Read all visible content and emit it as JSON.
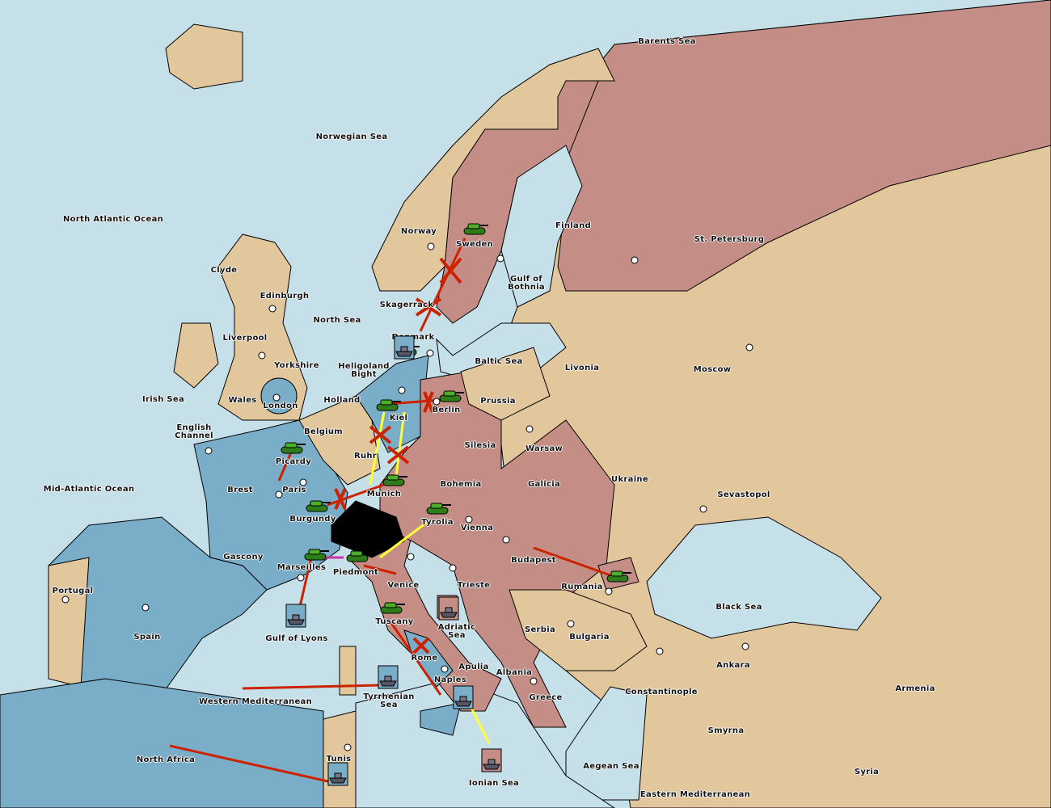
{
  "colors": {
    "sea": "#c6e0ea",
    "neutral_land": "#e2c69c",
    "russia_power": "#c48e86",
    "france_power": "#7aaec8",
    "switzerland": "#000000",
    "order_move": "#cc2200",
    "order_support": "#ffff33",
    "order_convoy": "#cc33aa"
  },
  "regions": [
    {
      "name": "Barents Sea"
    },
    {
      "name": "Norwegian Sea"
    },
    {
      "name": "North Atlantic Ocean"
    },
    {
      "name": "Clyde"
    },
    {
      "name": "Edinburgh"
    },
    {
      "name": "Liverpool"
    },
    {
      "name": "Yorkshire"
    },
    {
      "name": "North Sea"
    },
    {
      "name": "Irish Sea"
    },
    {
      "name": "Wales"
    },
    {
      "name": "London"
    },
    {
      "name": "English Channel"
    },
    {
      "name": "Mid-Atlantic Ocean"
    },
    {
      "name": "Brest"
    },
    {
      "name": "Picardy"
    },
    {
      "name": "Paris"
    },
    {
      "name": "Belgium"
    },
    {
      "name": "Holland"
    },
    {
      "name": "Heligoland Bight"
    },
    {
      "name": "Kiel"
    },
    {
      "name": "Ruhr"
    },
    {
      "name": "Munich"
    },
    {
      "name": "Burgundy"
    },
    {
      "name": "Gascony"
    },
    {
      "name": "Marseilles"
    },
    {
      "name": "Piedmont"
    },
    {
      "name": "Spain"
    },
    {
      "name": "Portugal"
    },
    {
      "name": "Gulf of Lyons"
    },
    {
      "name": "Western Mediterranean"
    },
    {
      "name": "North Africa"
    },
    {
      "name": "Tunis"
    },
    {
      "name": "Tyrrhenian Sea"
    },
    {
      "name": "Tuscany"
    },
    {
      "name": "Rome"
    },
    {
      "name": "Naples"
    },
    {
      "name": "Apulia"
    },
    {
      "name": "Venice"
    },
    {
      "name": "Tyrolia"
    },
    {
      "name": "Vienna"
    },
    {
      "name": "Trieste"
    },
    {
      "name": "Adriatic Sea"
    },
    {
      "name": "Ionian Sea"
    },
    {
      "name": "Albania"
    },
    {
      "name": "Greece"
    },
    {
      "name": "Serbia"
    },
    {
      "name": "Bulgaria"
    },
    {
      "name": "Rumania"
    },
    {
      "name": "Budapest"
    },
    {
      "name": "Bohemia"
    },
    {
      "name": "Galicia"
    },
    {
      "name": "Silesia"
    },
    {
      "name": "Warsaw"
    },
    {
      "name": "Berlin"
    },
    {
      "name": "Prussia"
    },
    {
      "name": "Baltic Sea"
    },
    {
      "name": "Denmark"
    },
    {
      "name": "Skagerrack"
    },
    {
      "name": "Norway"
    },
    {
      "name": "Sweden"
    },
    {
      "name": "Gulf of Bothnia"
    },
    {
      "name": "Finland"
    },
    {
      "name": "St. Petersburg"
    },
    {
      "name": "Livonia"
    },
    {
      "name": "Moscow"
    },
    {
      "name": "Ukraine"
    },
    {
      "name": "Sevastopol"
    },
    {
      "name": "Black Sea"
    },
    {
      "name": "Ankara"
    },
    {
      "name": "Armenia"
    },
    {
      "name": "Constantinople"
    },
    {
      "name": "Smyrna"
    },
    {
      "name": "Syria"
    },
    {
      "name": "Aegean Sea"
    },
    {
      "name": "Eastern Mediterranean"
    }
  ],
  "units": [
    {
      "type": "army",
      "owner_color": "#7aaec8"
    },
    {
      "type": "army",
      "owner_color": "#c48e86"
    },
    {
      "type": "army",
      "owner_color": "#7aaec8"
    },
    {
      "type": "army",
      "owner_color": "#c48e86"
    },
    {
      "type": "army",
      "owner_color": "#7aaec8"
    },
    {
      "type": "army",
      "owner_color": "#c48e86"
    },
    {
      "type": "army",
      "owner_color": "#7aaec8"
    },
    {
      "type": "army",
      "owner_color": "#c48e86"
    },
    {
      "type": "army",
      "owner_color": "#7aaec8"
    },
    {
      "type": "army",
      "owner_color": "#7aaec8"
    },
    {
      "type": "army",
      "owner_color": "#c48e86"
    },
    {
      "type": "army",
      "owner_color": "#c48e86"
    },
    {
      "type": "fleet",
      "owner_color": "#7aaec8"
    },
    {
      "type": "fleet",
      "owner_color": "#7aaec8"
    },
    {
      "type": "fleet",
      "owner_color": "#c48e86"
    },
    {
      "type": "fleet",
      "owner_color": "#7aaec8"
    },
    {
      "type": "fleet",
      "owner_color": "#7aaec8"
    },
    {
      "type": "fleet",
      "owner_color": "#7aaec8"
    },
    {
      "type": "fleet",
      "owner_color": "#c48e86"
    },
    {
      "type": "fleet",
      "owner_color": "#c48e86"
    }
  ]
}
